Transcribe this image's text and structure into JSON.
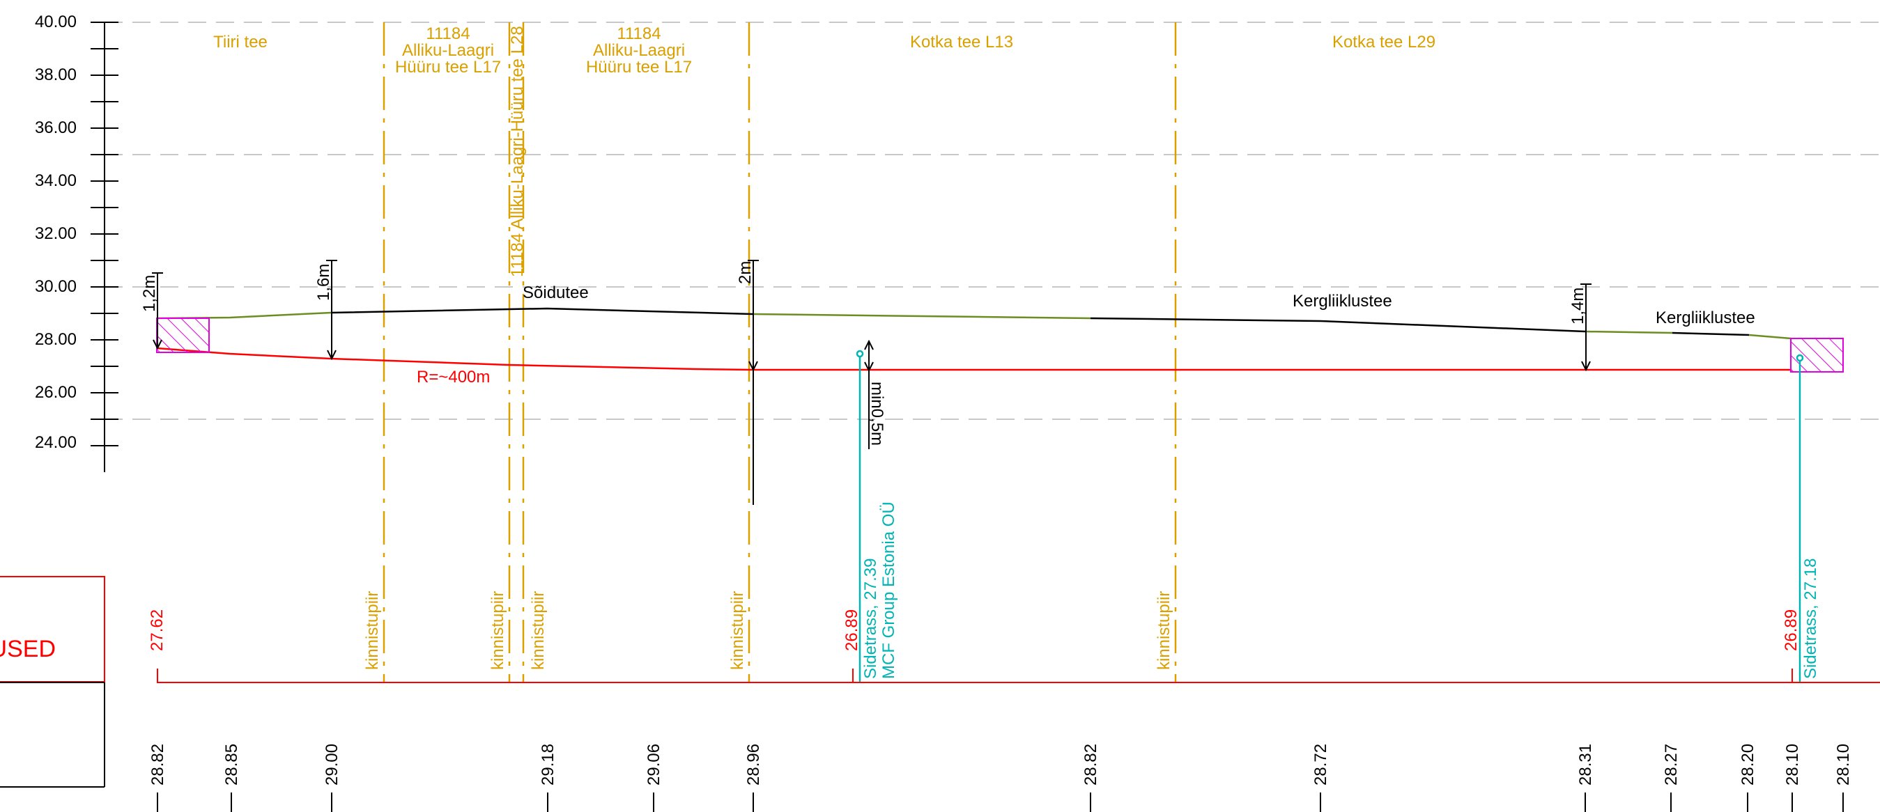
{
  "elevation_axis": {
    "labels": [
      "40.00",
      "38.00",
      "36.00",
      "34.00",
      "32.00",
      "30.00",
      "28.00",
      "26.00",
      "24.00"
    ]
  },
  "property_sections": [
    {
      "lines": [
        "Tiiri tee"
      ]
    },
    {
      "lines": [
        "11184",
        "Alliku-Laagri",
        "Hüüru tee L17"
      ]
    },
    {
      "lines": [
        "11184 Alliku-Laagri-Hüüru tee L28"
      ]
    },
    {
      "lines": [
        "11184",
        "Alliku-Laagri",
        "Hüüru tee L17"
      ]
    },
    {
      "lines": [
        "Kotka tee L13"
      ]
    },
    {
      "lines": [
        "Kotka tee L29"
      ]
    }
  ],
  "boundary_label": "kinnistupiir",
  "surface_labels": {
    "soidutee": "Sõidutee",
    "kergliiklustee_1": "Kergliiklustee",
    "kergliiklustee_2": "Kergliiklustee"
  },
  "depth_labels": [
    "1,2m",
    "1,6m",
    "2m",
    "1,4m"
  ],
  "min_clearance": "min0,5m",
  "radius_label": "R=~400m",
  "utilities": [
    {
      "line1": "Sidetrass, 27.39",
      "line2": "MCF Group Estonia OÜ"
    },
    {
      "line1": "Sidetrass, 27.18",
      "line2": ""
    }
  ],
  "pipe_elevations": [
    "27.62",
    "26.89",
    "26.89"
  ],
  "ground_elevations": [
    "28.82",
    "28.85",
    "29.00",
    "29.18",
    "29.06",
    "28.96",
    "28.82",
    "28.72",
    "28.31",
    "28.27",
    "28.20",
    "28.10",
    "28.10"
  ],
  "table_label": "USED",
  "colors": {
    "property": "#d9a000",
    "pipe": "#ff0000",
    "ground_green": "#6b8e23",
    "utility": "#00b4b4",
    "hatch": "#e000e0",
    "grid": "#c8c8c8"
  }
}
